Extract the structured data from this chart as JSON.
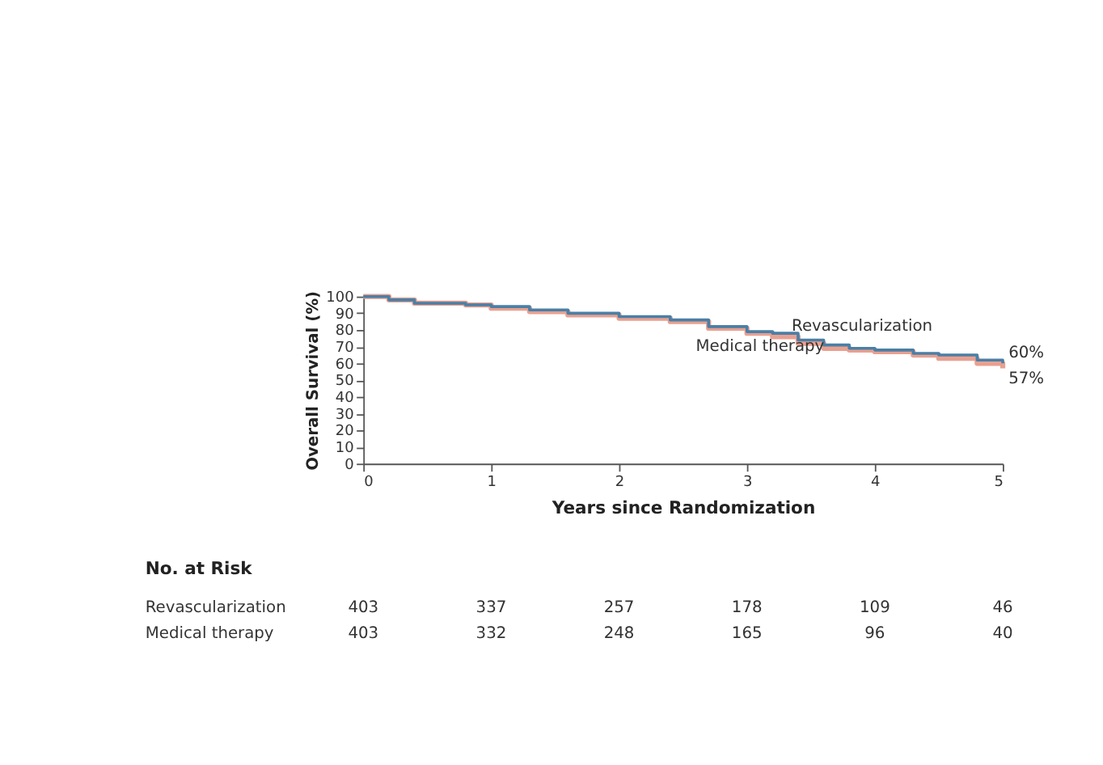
{
  "chart_data": [
    {
      "type": "step",
      "xlabel": "Years since Randomization",
      "ylabel": "Overall Survival (%)",
      "xlim": [
        0,
        5
      ],
      "xticks": [
        0,
        1,
        2,
        3,
        4,
        5
      ],
      "ylim": [
        0,
        100
      ],
      "yticks": [
        0,
        10,
        20,
        30,
        40,
        50,
        60,
        70,
        80,
        90,
        100
      ],
      "grid": false,
      "legend": false,
      "marker": "none",
      "line_style": "solid",
      "x": [
        0,
        0.2,
        0.4,
        0.8,
        1.0,
        1.3,
        1.6,
        2.0,
        2.4,
        2.7,
        3.0,
        3.2,
        3.4,
        3.6,
        3.8,
        4.0,
        4.3,
        4.5,
        4.8,
        5.0
      ],
      "series": [
        {
          "name": "Revascularization",
          "color": "#4a7fa6",
          "values": [
            100,
            98,
            96,
            95,
            94,
            92,
            90,
            88,
            86,
            82,
            79,
            78,
            74,
            71,
            69,
            68,
            66,
            65,
            62,
            60
          ]
        },
        {
          "name": "Medical therapy",
          "color": "#e8a090",
          "values": [
            100,
            98,
            96,
            95,
            93,
            91,
            89,
            87,
            85,
            81,
            78,
            76,
            72,
            69,
            68,
            67,
            65,
            63,
            60,
            57
          ]
        }
      ],
      "annotations": [
        {
          "text": "60%",
          "x": 5,
          "y": 60
        },
        {
          "text": "57%",
          "x": 5,
          "y": 57
        }
      ]
    },
    {
      "type": "heatmap",
      "title": "No. at Risk",
      "categories": [
        null,
        null,
        null,
        null,
        null,
        null
      ],
      "y_categories": [
        "Revascularization",
        "Medical therapy"
      ],
      "data_labels": true,
      "cells": [
        [
          403,
          337,
          257,
          178,
          109,
          46
        ],
        [
          403,
          332,
          248,
          165,
          96,
          40
        ]
      ]
    }
  ]
}
